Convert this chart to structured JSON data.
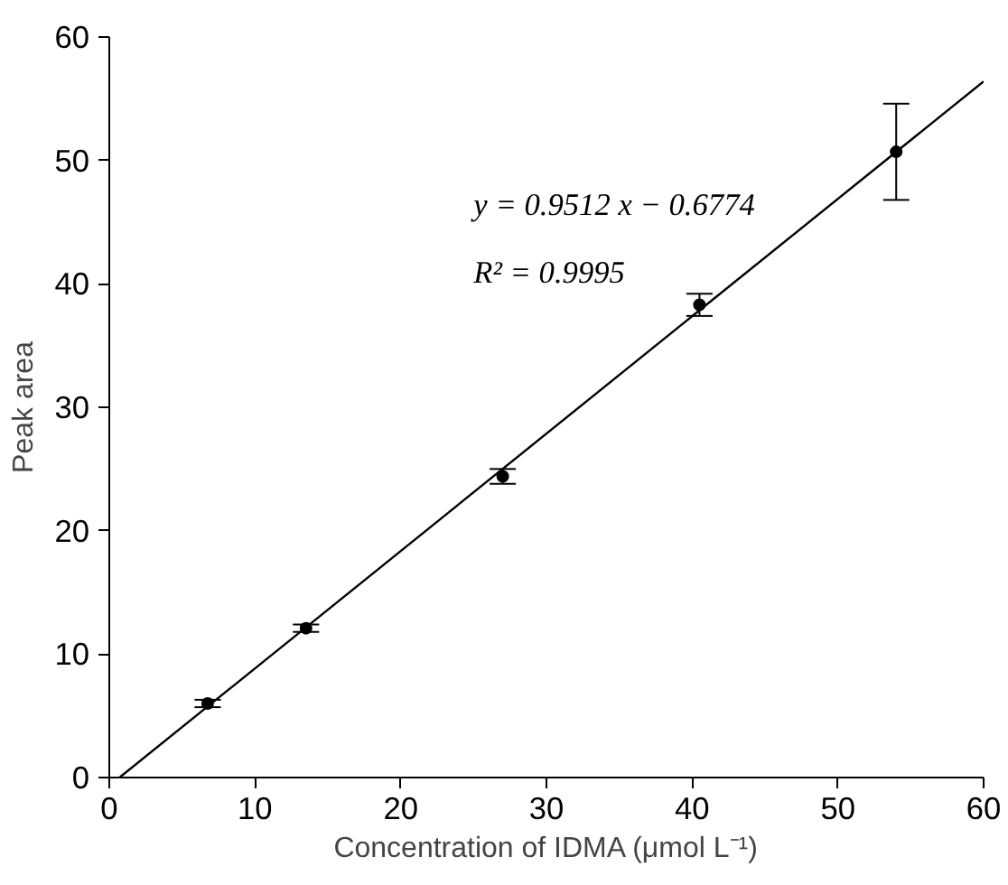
{
  "chart_data": {
    "type": "scatter",
    "xlabel": "Concentration of IDMA (μmol L⁻¹)",
    "ylabel": "Peak area",
    "x": [
      6.75,
      13.5,
      27,
      40.5,
      54
    ],
    "series": [
      {
        "color": "#000000",
        "marker": "circle",
        "values": [
          6.0,
          12.1,
          24.4,
          38.3,
          50.7
        ],
        "errors": [
          [
            5.7,
            6.3
          ],
          [
            11.8,
            12.4
          ],
          [
            23.8,
            25.0
          ],
          [
            37.4,
            39.2
          ],
          [
            46.8,
            54.6
          ]
        ]
      },
      {
        "type": "line",
        "color": "#000000",
        "x": [
          0.7,
          60
        ],
        "values": [
          0,
          56.4
        ]
      }
    ],
    "annotations": [
      "y = 0.9512 x − 0.6774",
      "R² = 0.9995"
    ],
    "xlim": [
      0,
      60
    ],
    "ylim": [
      0,
      60
    ],
    "xticks": [
      0,
      10,
      20,
      30,
      40,
      50,
      60
    ],
    "yticks": [
      0,
      10,
      20,
      30,
      40,
      50,
      60
    ],
    "grid": false
  }
}
